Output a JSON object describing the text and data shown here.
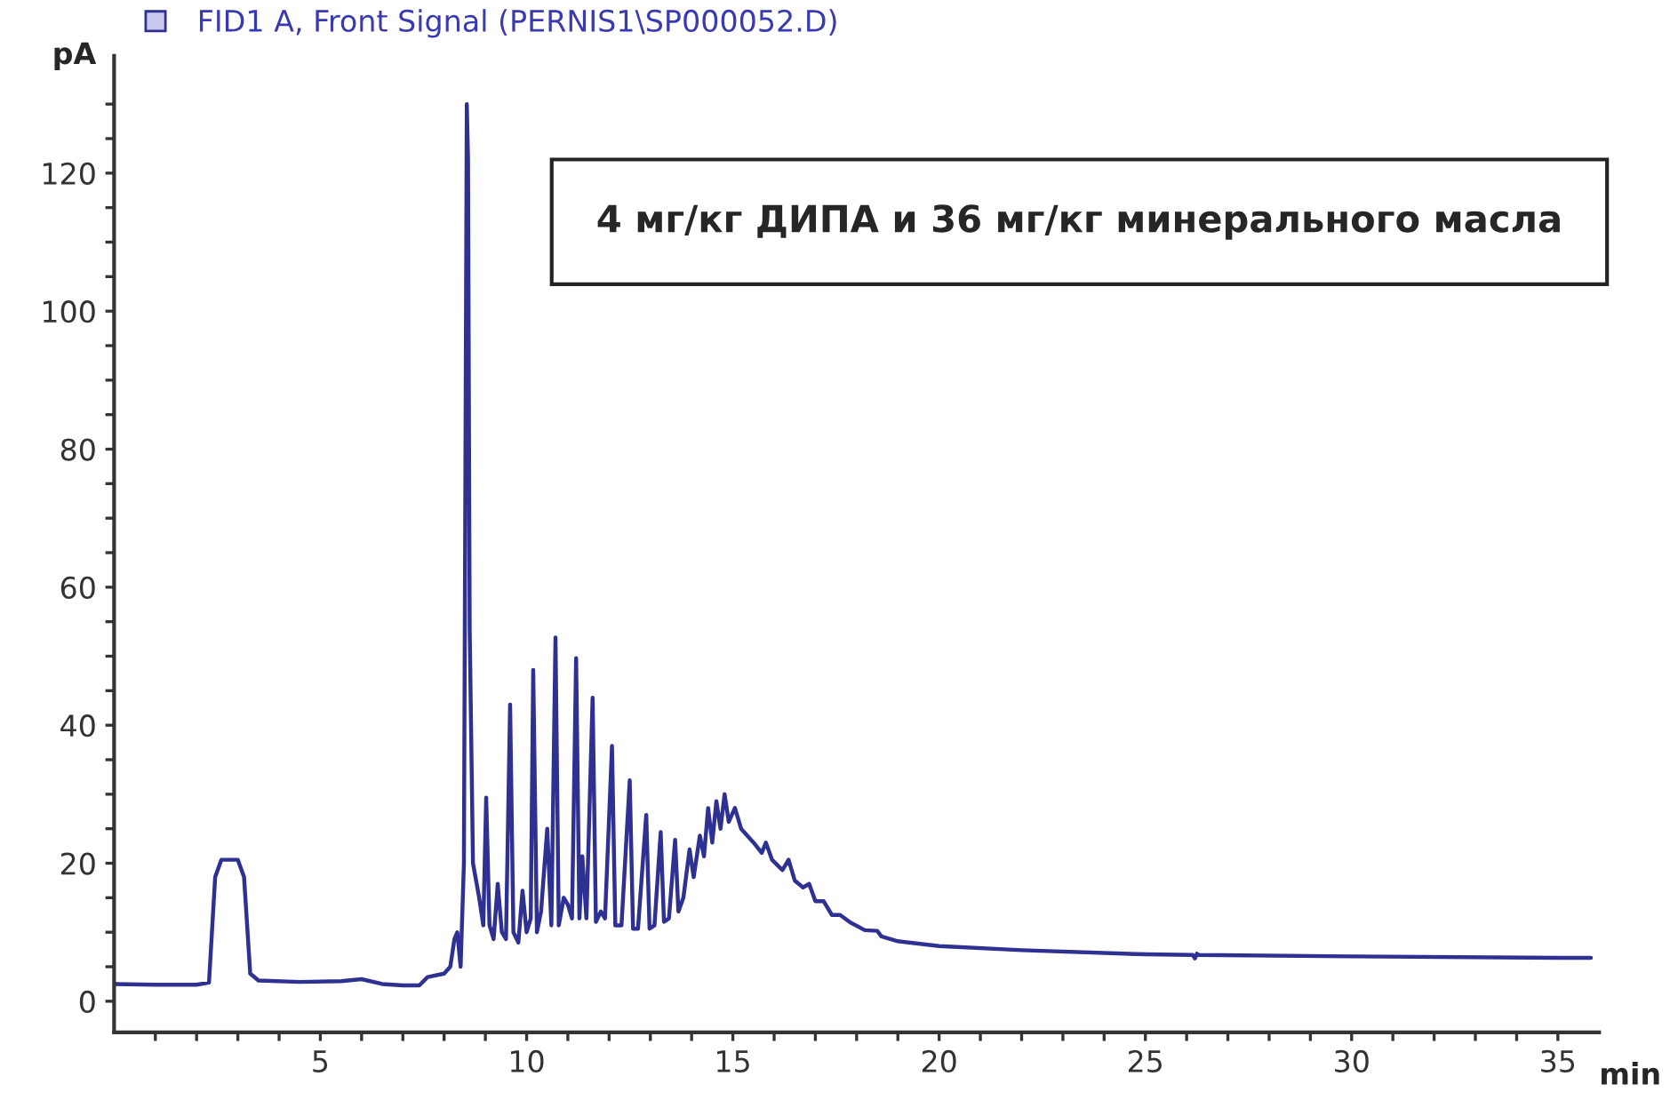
{
  "chart_data": {
    "type": "line",
    "xlabel": "min",
    "ylabel": "pA",
    "legend": "top left",
    "annotations": [
      "4 мг/кг ДИПА и 36 мг/кг минерального масла"
    ],
    "xlim": [
      0,
      36
    ],
    "ylim": [
      -4.5,
      137
    ],
    "xticks": [
      {
        "value": 1,
        "label": null
      },
      {
        "value": 2,
        "label": null
      },
      {
        "value": 3,
        "label": null
      },
      {
        "value": 4,
        "label": null
      },
      5,
      {
        "value": 6,
        "label": null
      },
      {
        "value": 7,
        "label": null
      },
      {
        "value": 8,
        "label": null
      },
      {
        "value": 9,
        "label": null
      },
      10,
      {
        "value": 11,
        "label": null
      },
      {
        "value": 12,
        "label": null
      },
      {
        "value": 13,
        "label": null
      },
      {
        "value": 14,
        "label": null
      },
      15,
      {
        "value": 16,
        "label": null
      },
      {
        "value": 17,
        "label": null
      },
      {
        "value": 18,
        "label": null
      },
      {
        "value": 19,
        "label": null
      },
      20,
      {
        "value": 21,
        "label": null
      },
      {
        "value": 22,
        "label": null
      },
      {
        "value": 23,
        "label": null
      },
      {
        "value": 24,
        "label": null
      },
      25,
      {
        "value": 26,
        "label": null
      },
      {
        "value": 27,
        "label": null
      },
      {
        "value": 28,
        "label": null
      },
      {
        "value": 29,
        "label": null
      },
      30,
      {
        "value": 31,
        "label": null
      },
      {
        "value": 32,
        "label": null
      },
      {
        "value": 33,
        "label": null
      },
      {
        "value": 34,
        "label": null
      },
      35
    ],
    "yticks": [
      0,
      {
        "value": 5,
        "label": null
      },
      {
        "value": 10,
        "label": null
      },
      {
        "value": 15,
        "label": null
      },
      20,
      {
        "value": 25,
        "label": null
      },
      {
        "value": 30,
        "label": null
      },
      {
        "value": 35,
        "label": null
      },
      40,
      {
        "value": 45,
        "label": null
      },
      {
        "value": 50,
        "label": null
      },
      {
        "value": 55,
        "label": null
      },
      60,
      {
        "value": 65,
        "label": null
      },
      {
        "value": 70,
        "label": null
      },
      {
        "value": 75,
        "label": null
      },
      80,
      {
        "value": 85,
        "label": null
      },
      {
        "value": 90,
        "label": null
      },
      {
        "value": 95,
        "label": null
      },
      100,
      {
        "value": 105,
        "label": null
      },
      {
        "value": 110,
        "label": null
      },
      {
        "value": 115,
        "label": null
      },
      120,
      {
        "value": 125,
        "label": null
      },
      {
        "value": 130,
        "label": null
      }
    ],
    "series": [
      {
        "name": "FID1 A, Front Signal (PERNIS1\\SP000052.D)",
        "color": "#2e3192",
        "x": [
          0,
          1,
          2,
          2.3,
          2.45,
          2.6,
          3.0,
          3.15,
          3.3,
          3.5,
          4.5,
          5.5,
          6,
          6.5,
          7,
          7.4,
          7.6,
          8.0,
          8.15,
          8.25,
          8.32,
          8.4,
          8.48,
          8.55,
          8.58,
          8.62,
          8.7,
          8.85,
          8.95,
          9.02,
          9.1,
          9.2,
          9.3,
          9.4,
          9.5,
          9.6,
          9.68,
          9.8,
          9.9,
          10.0,
          10.1,
          10.16,
          10.25,
          10.35,
          10.5,
          10.6,
          10.7,
          10.78,
          10.9,
          11.0,
          11.1,
          11.2,
          11.28,
          11.35,
          11.45,
          11.6,
          11.68,
          11.8,
          11.9,
          12.07,
          12.15,
          12.3,
          12.5,
          12.58,
          12.7,
          12.9,
          12.98,
          13.1,
          13.25,
          13.33,
          13.45,
          13.6,
          13.68,
          13.8,
          13.95,
          14.05,
          14.2,
          14.3,
          14.4,
          14.5,
          14.6,
          14.7,
          14.8,
          14.9,
          15.05,
          15.2,
          15.5,
          15.7,
          15.8,
          15.95,
          16.2,
          16.35,
          16.5,
          16.7,
          16.85,
          17.0,
          17.2,
          17.4,
          17.6,
          17.85,
          18.2,
          18.5,
          18.6,
          19,
          20,
          22,
          25,
          26.15,
          26.2,
          26.25,
          26.3,
          30,
          35,
          35.8
        ],
        "values": [
          2.5,
          2.4,
          2.4,
          2.7,
          18,
          20.5,
          20.5,
          18,
          4,
          3,
          2.8,
          2.9,
          3.2,
          2.5,
          2.3,
          2.3,
          3.5,
          4.0,
          5,
          9,
          10,
          5,
          20,
          130,
          122,
          54,
          20,
          15,
          11,
          29.5,
          11,
          9,
          17,
          10,
          9,
          43,
          10,
          8.5,
          16,
          10,
          12,
          48,
          10,
          13,
          25,
          11,
          52.7,
          11,
          15,
          14,
          12,
          49.7,
          12,
          21,
          12,
          44,
          11.5,
          13,
          12,
          37,
          11,
          11,
          32,
          10.5,
          10.5,
          27,
          10.5,
          11,
          24.5,
          11.5,
          12,
          23.4,
          13,
          15,
          22,
          18,
          24,
          21,
          28,
          23,
          29,
          25,
          30,
          26,
          28,
          25,
          23,
          21.5,
          23,
          20.5,
          19,
          20.5,
          17.5,
          16.5,
          17,
          14.5,
          14.5,
          12.5,
          12.5,
          11.4,
          10.3,
          10.2,
          9.4,
          8.7,
          8,
          7.4,
          6.8,
          6.7,
          6.2,
          6.9,
          6.7,
          6.5,
          6.3,
          6.3
        ]
      }
    ]
  }
}
